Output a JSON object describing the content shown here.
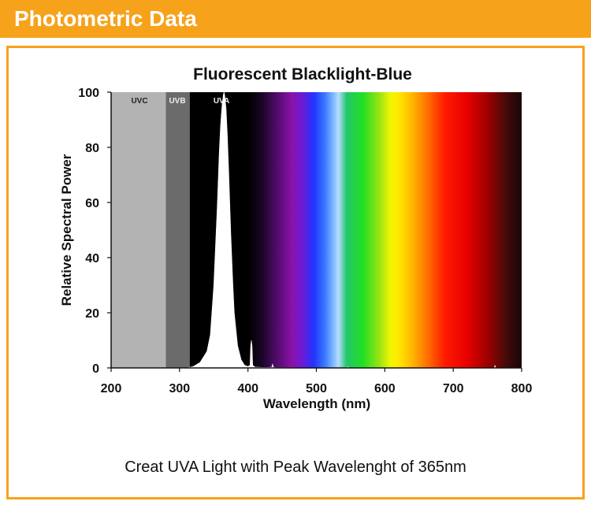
{
  "header": {
    "title": "Photometric Data"
  },
  "caption": "Creat UVA Light with Peak Wavelenght of 365nm",
  "colors": {
    "accent": "#f7a21b",
    "uvc": "#b3b3b3",
    "uvb": "#6b6b6b",
    "uva": "#333333"
  },
  "chart_data": {
    "type": "area",
    "title": "Fluorescent Blacklight-Blue",
    "xlabel": "Wavelength (nm)",
    "ylabel": "Relative Spectral Power",
    "xlim": [
      200,
      800
    ],
    "ylim": [
      0,
      100
    ],
    "xticks": [
      200,
      300,
      400,
      500,
      600,
      700,
      800
    ],
    "yticks": [
      0,
      20,
      40,
      60,
      80,
      100
    ],
    "grid": false,
    "bands": [
      {
        "label": "UVC",
        "range": [
          200,
          280
        ]
      },
      {
        "label": "UVB",
        "range": [
          280,
          315
        ]
      },
      {
        "label": "UVA",
        "range": [
          315,
          400
        ]
      }
    ],
    "series": [
      {
        "x": [
          310,
          320,
          330,
          340,
          345,
          350,
          355,
          358,
          360,
          362,
          364,
          365,
          366,
          368,
          370,
          372,
          375,
          378,
          380,
          385,
          390,
          395,
          400,
          403,
          404,
          405,
          406,
          407,
          410,
          420,
          430,
          435,
          436,
          437,
          440,
          500,
          545,
          546,
          547,
          550,
          760,
          761,
          762,
          770,
          800
        ],
        "y": [
          0,
          0.5,
          2,
          6,
          12,
          30,
          58,
          78,
          88,
          95,
          99,
          100,
          99,
          94,
          84,
          70,
          48,
          30,
          20,
          8,
          3,
          1,
          0.5,
          1,
          8,
          10,
          8,
          1,
          0.3,
          0.2,
          0.2,
          0.3,
          1.5,
          0.3,
          0.1,
          0,
          0,
          0.5,
          0,
          0,
          0,
          1,
          0,
          0,
          0
        ]
      }
    ]
  }
}
